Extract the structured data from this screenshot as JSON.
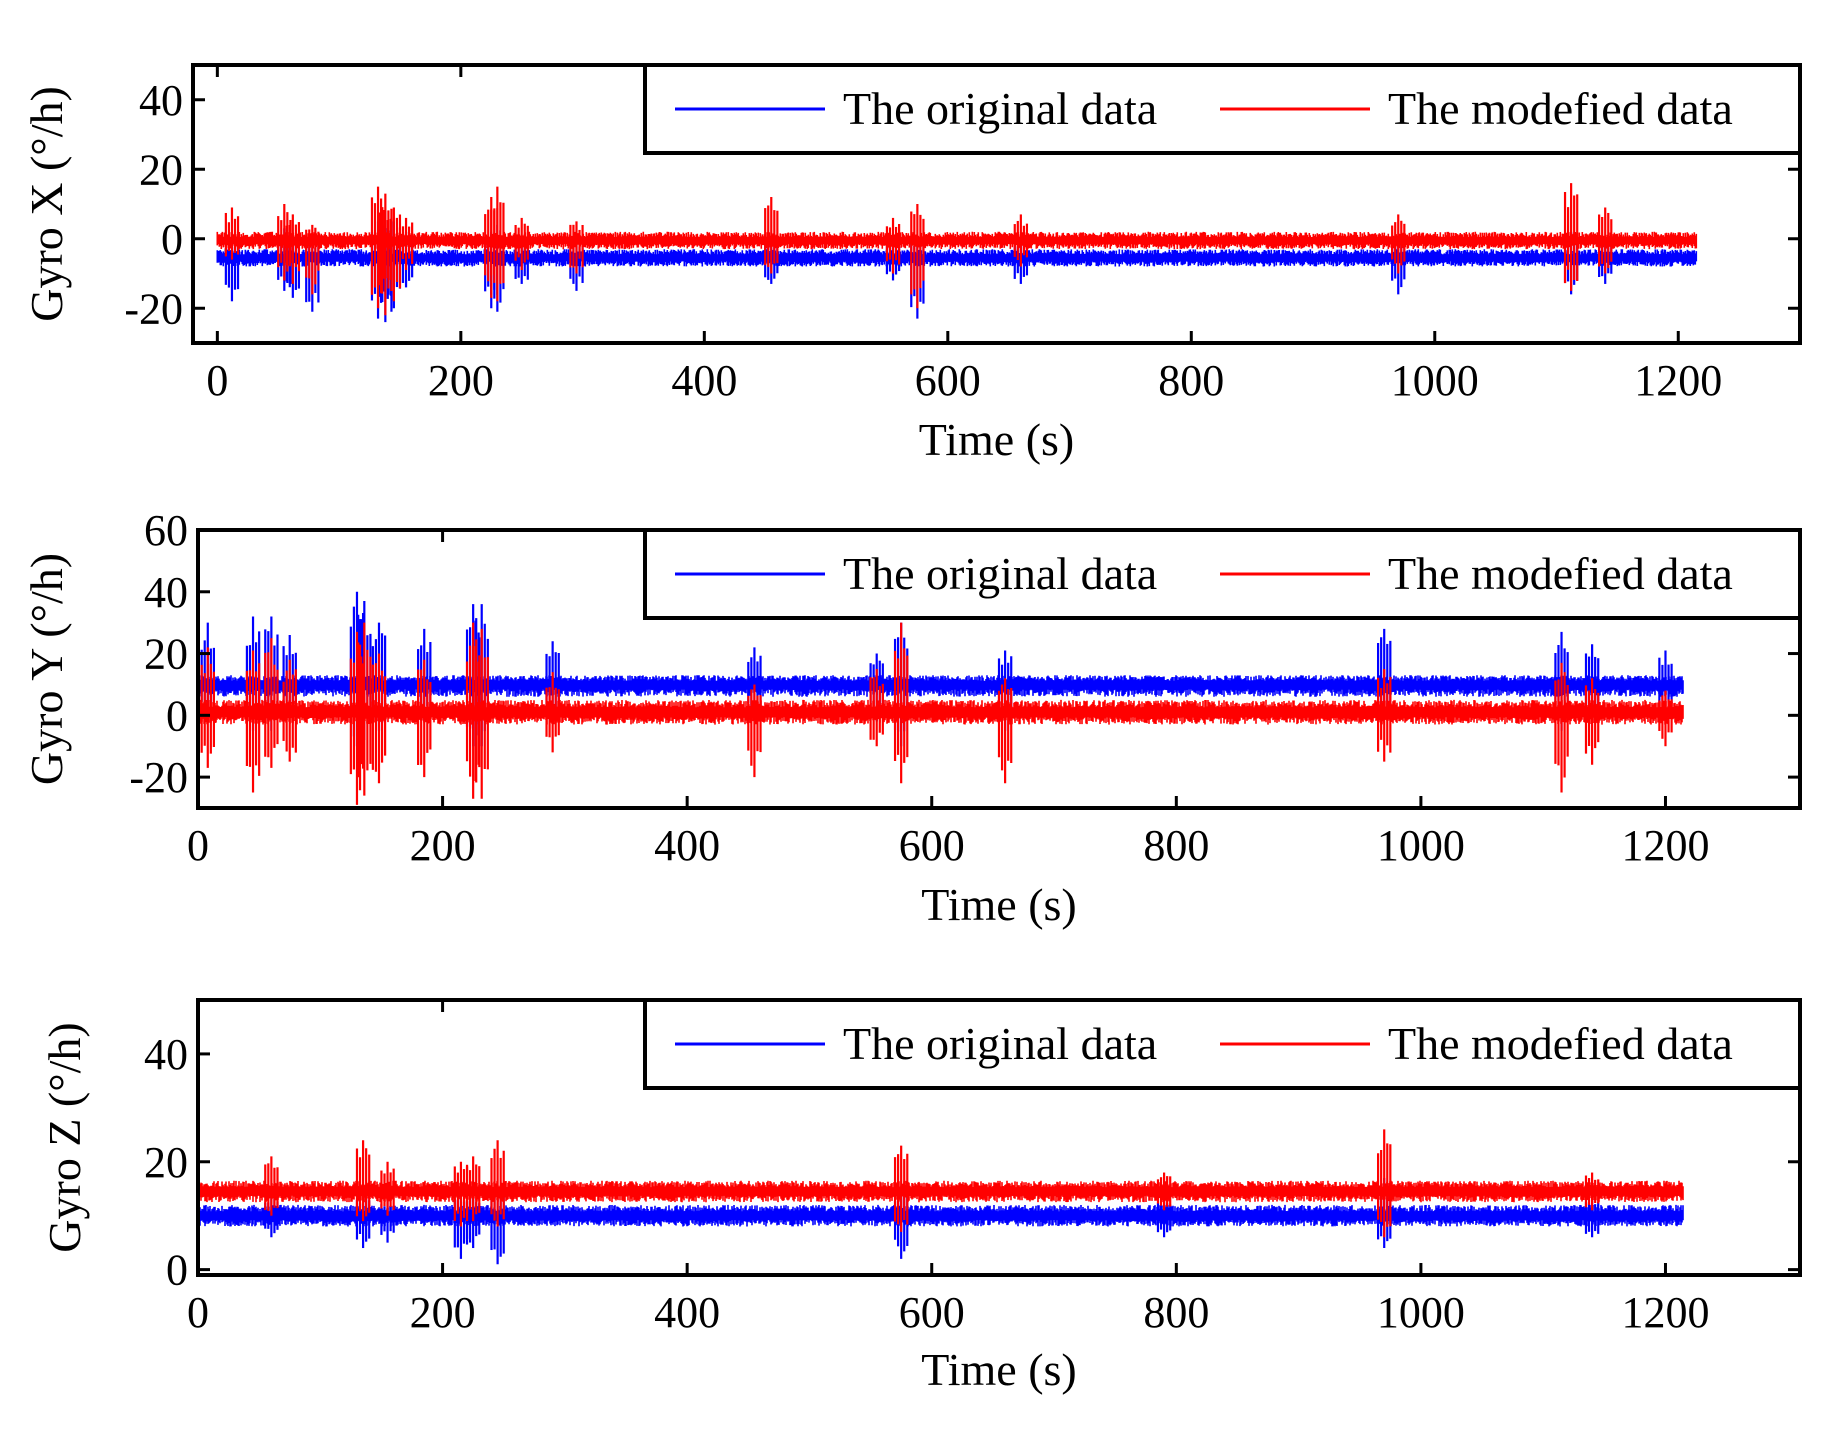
{
  "colors": {
    "original": "#0000ff",
    "modified": "#ff0000",
    "axes": "#000000",
    "background": "#ffffff"
  },
  "chart_data": [
    {
      "type": "line",
      "panel": "gyro-x",
      "title": "",
      "xlabel": "Time (s)",
      "ylabel": "Gyro X (°/h)",
      "xlim": [
        -20,
        1300
      ],
      "ylim": [
        -30,
        50
      ],
      "xticks": [
        0,
        200,
        400,
        600,
        800,
        1000,
        1200
      ],
      "yticks": [
        -20,
        0,
        20,
        40
      ],
      "legend": {
        "position": "top-right",
        "entries": [
          "The original data",
          "The modefied data"
        ]
      },
      "series": [
        {
          "name": "The original data",
          "color": "#0000ff",
          "x_range": [
            0,
            1215
          ],
          "baseline": -5.5,
          "band_low": -8,
          "band_high": -3,
          "spikes": [
            {
              "x": 12,
              "lo": -18,
              "hi": -1
            },
            {
              "x": 55,
              "lo": -15,
              "hi": 3
            },
            {
              "x": 62,
              "lo": -17,
              "hi": 0
            },
            {
              "x": 78,
              "lo": -21,
              "hi": -1
            },
            {
              "x": 132,
              "lo": -23,
              "hi": 5
            },
            {
              "x": 138,
              "lo": -24,
              "hi": 8
            },
            {
              "x": 145,
              "lo": -20,
              "hi": 5
            },
            {
              "x": 155,
              "lo": -14,
              "hi": 2
            },
            {
              "x": 225,
              "lo": -20,
              "hi": 2
            },
            {
              "x": 230,
              "lo": -21,
              "hi": 4
            },
            {
              "x": 250,
              "lo": -13,
              "hi": 0
            },
            {
              "x": 295,
              "lo": -15,
              "hi": 0
            },
            {
              "x": 455,
              "lo": -13,
              "hi": 0
            },
            {
              "x": 555,
              "lo": -12,
              "hi": 0
            },
            {
              "x": 575,
              "lo": -23,
              "hi": 0
            },
            {
              "x": 660,
              "lo": -13,
              "hi": 0
            },
            {
              "x": 970,
              "lo": -16,
              "hi": 0
            },
            {
              "x": 1112,
              "lo": -16,
              "hi": 2
            },
            {
              "x": 1140,
              "lo": -13,
              "hi": 0
            }
          ]
        },
        {
          "name": "The modefied data",
          "color": "#ff0000",
          "x_range": [
            0,
            1215
          ],
          "baseline": -0.5,
          "band_low": -3,
          "band_high": 2,
          "spikes": [
            {
              "x": 12,
              "lo": -6,
              "hi": 9
            },
            {
              "x": 55,
              "lo": -12,
              "hi": 10
            },
            {
              "x": 62,
              "lo": -13,
              "hi": 7
            },
            {
              "x": 78,
              "lo": -16,
              "hi": 4
            },
            {
              "x": 132,
              "lo": -20,
              "hi": 15
            },
            {
              "x": 138,
              "lo": -22,
              "hi": 13
            },
            {
              "x": 145,
              "lo": -18,
              "hi": 9
            },
            {
              "x": 155,
              "lo": -9,
              "hi": 6
            },
            {
              "x": 225,
              "lo": -17,
              "hi": 12
            },
            {
              "x": 230,
              "lo": -18,
              "hi": 15
            },
            {
              "x": 250,
              "lo": -9,
              "hi": 6
            },
            {
              "x": 295,
              "lo": -10,
              "hi": 5
            },
            {
              "x": 455,
              "lo": -10,
              "hi": 12
            },
            {
              "x": 555,
              "lo": -10,
              "hi": 6
            },
            {
              "x": 575,
              "lo": -20,
              "hi": 10
            },
            {
              "x": 660,
              "lo": -8,
              "hi": 7
            },
            {
              "x": 970,
              "lo": -10,
              "hi": 7
            },
            {
              "x": 1112,
              "lo": -15,
              "hi": 16
            },
            {
              "x": 1140,
              "lo": -10,
              "hi": 9
            }
          ]
        }
      ]
    },
    {
      "type": "line",
      "panel": "gyro-y",
      "title": "",
      "xlabel": "Time (s)",
      "ylabel": "Gyro Y (°/h)",
      "xlim": [
        0,
        1310
      ],
      "ylim": [
        -30,
        60
      ],
      "xticks": [
        0,
        200,
        400,
        600,
        800,
        1000,
        1200
      ],
      "yticks": [
        -20,
        0,
        20,
        40,
        60
      ],
      "legend": {
        "position": "top-right",
        "entries": [
          "The original data",
          "The modefied data"
        ]
      },
      "series": [
        {
          "name": "The original data",
          "color": "#0000ff",
          "x_range": [
            0,
            1215
          ],
          "baseline": 10,
          "band_low": 6,
          "band_high": 13,
          "spikes": [
            {
              "x": 8,
              "lo": 0,
              "hi": 30
            },
            {
              "x": 45,
              "lo": -5,
              "hi": 32
            },
            {
              "x": 60,
              "lo": -5,
              "hi": 32
            },
            {
              "x": 75,
              "lo": 0,
              "hi": 26
            },
            {
              "x": 130,
              "lo": -10,
              "hi": 40
            },
            {
              "x": 136,
              "lo": -8,
              "hi": 37
            },
            {
              "x": 148,
              "lo": -5,
              "hi": 30
            },
            {
              "x": 185,
              "lo": -2,
              "hi": 28
            },
            {
              "x": 225,
              "lo": -10,
              "hi": 36
            },
            {
              "x": 232,
              "lo": -10,
              "hi": 36
            },
            {
              "x": 290,
              "lo": 0,
              "hi": 24
            },
            {
              "x": 455,
              "lo": 0,
              "hi": 22
            },
            {
              "x": 555,
              "lo": -2,
              "hi": 20
            },
            {
              "x": 575,
              "lo": -10,
              "hi": 30
            },
            {
              "x": 660,
              "lo": -5,
              "hi": 21
            },
            {
              "x": 970,
              "lo": 0,
              "hi": 28
            },
            {
              "x": 1115,
              "lo": -5,
              "hi": 27
            },
            {
              "x": 1140,
              "lo": 0,
              "hi": 23
            },
            {
              "x": 1200,
              "lo": 0,
              "hi": 21
            }
          ]
        },
        {
          "name": "The modefied data",
          "color": "#ff0000",
          "x_range": [
            0,
            1215
          ],
          "baseline": 1,
          "band_low": -3,
          "band_high": 5,
          "spikes": [
            {
              "x": 8,
              "lo": -17,
              "hi": 22
            },
            {
              "x": 45,
              "lo": -25,
              "hi": 21
            },
            {
              "x": 60,
              "lo": -17,
              "hi": 25
            },
            {
              "x": 75,
              "lo": -15,
              "hi": 18
            },
            {
              "x": 130,
              "lo": -29,
              "hi": 27
            },
            {
              "x": 136,
              "lo": -26,
              "hi": 30
            },
            {
              "x": 148,
              "lo": -22,
              "hi": 20
            },
            {
              "x": 185,
              "lo": -20,
              "hi": 18
            },
            {
              "x": 225,
              "lo": -27,
              "hi": 30
            },
            {
              "x": 232,
              "lo": -27,
              "hi": 28
            },
            {
              "x": 290,
              "lo": -12,
              "hi": 14
            },
            {
              "x": 455,
              "lo": -20,
              "hi": 10
            },
            {
              "x": 555,
              "lo": -10,
              "hi": 15
            },
            {
              "x": 575,
              "lo": -22,
              "hi": 30
            },
            {
              "x": 660,
              "lo": -22,
              "hi": 12
            },
            {
              "x": 970,
              "lo": -15,
              "hi": 15
            },
            {
              "x": 1115,
              "lo": -25,
              "hi": 17
            },
            {
              "x": 1140,
              "lo": -16,
              "hi": 12
            },
            {
              "x": 1200,
              "lo": -10,
              "hi": 8
            }
          ]
        }
      ]
    },
    {
      "type": "line",
      "panel": "gyro-z",
      "title": "",
      "xlabel": "Time (s)",
      "ylabel": "Gyro Z (°/h)",
      "xlim": [
        0,
        1310
      ],
      "ylim": [
        -1,
        50
      ],
      "xticks": [
        0,
        200,
        400,
        600,
        800,
        1000,
        1200
      ],
      "yticks": [
        0,
        20,
        40
      ],
      "legend": {
        "position": "top-right",
        "entries": [
          "The original data",
          "The modefied data"
        ]
      },
      "series": [
        {
          "name": "The original data",
          "color": "#0000ff",
          "x_range": [
            0,
            1215
          ],
          "baseline": 10,
          "band_low": 8,
          "band_high": 12,
          "spikes": [
            {
              "x": 60,
              "lo": 6,
              "hi": 14
            },
            {
              "x": 135,
              "lo": 4,
              "hi": 14
            },
            {
              "x": 155,
              "lo": 5,
              "hi": 13
            },
            {
              "x": 215,
              "lo": 2,
              "hi": 14
            },
            {
              "x": 225,
              "lo": 4,
              "hi": 14
            },
            {
              "x": 245,
              "lo": 1,
              "hi": 15
            },
            {
              "x": 575,
              "lo": 2,
              "hi": 15
            },
            {
              "x": 790,
              "lo": 6,
              "hi": 13
            },
            {
              "x": 970,
              "lo": 4,
              "hi": 17
            },
            {
              "x": 1140,
              "lo": 6,
              "hi": 13
            }
          ]
        },
        {
          "name": "The modefied data",
          "color": "#ff0000",
          "x_range": [
            0,
            1215
          ],
          "baseline": 14.5,
          "band_low": 12.5,
          "band_high": 16.5,
          "spikes": [
            {
              "x": 60,
              "lo": 10,
              "hi": 21
            },
            {
              "x": 135,
              "lo": 9,
              "hi": 24
            },
            {
              "x": 155,
              "lo": 10,
              "hi": 20
            },
            {
              "x": 215,
              "lo": 8,
              "hi": 20
            },
            {
              "x": 225,
              "lo": 9,
              "hi": 21
            },
            {
              "x": 245,
              "lo": 8,
              "hi": 24
            },
            {
              "x": 575,
              "lo": 7,
              "hi": 23
            },
            {
              "x": 790,
              "lo": 11,
              "hi": 18
            },
            {
              "x": 970,
              "lo": 6,
              "hi": 26
            },
            {
              "x": 1140,
              "lo": 11,
              "hi": 18
            }
          ]
        }
      ]
    }
  ]
}
